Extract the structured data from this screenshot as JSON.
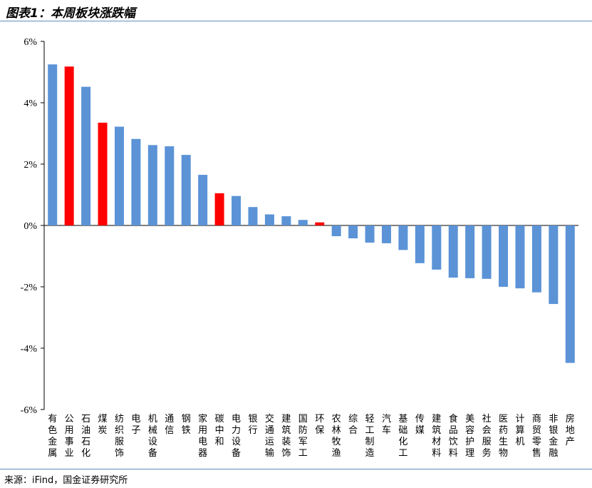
{
  "header": {
    "title": "图表1：本周板块涨跌幅"
  },
  "footer": {
    "source": "来源：iFind，国金证券研究所"
  },
  "chart_data": {
    "type": "bar",
    "title": "图表1：本周板块涨跌幅",
    "xlabel": "",
    "ylabel": "",
    "ylim": [
      -6,
      6
    ],
    "yticks": [
      6,
      4,
      2,
      0,
      -2,
      -4,
      -6
    ],
    "ytick_labels": [
      "6%",
      "4%",
      "2%",
      "0%",
      "-2%",
      "-4%",
      "-6%"
    ],
    "grid": false,
    "legend": "none",
    "colors": {
      "default": "#5b93d6",
      "highlight": "#ff0000"
    },
    "categories": [
      "有色金属",
      "公用事业",
      "石油石化",
      "煤炭",
      "纺织服饰",
      "电子",
      "机械设备",
      "通信",
      "钢铁",
      "家用电器",
      "碳中和",
      "电力设备",
      "银行",
      "交通运输",
      "建筑装饰",
      "国防军工",
      "环保",
      "农林牧渔",
      "综合",
      "轻工制造",
      "汽车",
      "基础化工",
      "传媒",
      "建筑材料",
      "食品饮料",
      "美容护理",
      "社会服务",
      "医药生物",
      "计算机",
      "商贸零售",
      "非银金融",
      "房地产"
    ],
    "values": [
      5.25,
      5.18,
      4.52,
      3.35,
      3.22,
      2.82,
      2.62,
      2.58,
      2.3,
      1.65,
      1.05,
      0.96,
      0.6,
      0.36,
      0.3,
      0.18,
      0.1,
      -0.35,
      -0.42,
      -0.56,
      -0.58,
      -0.8,
      -1.23,
      -1.44,
      -1.7,
      -1.72,
      -1.74,
      -2.0,
      -2.05,
      -2.18,
      -2.56,
      -4.48
    ],
    "highlighted": [
      false,
      true,
      false,
      true,
      false,
      false,
      false,
      false,
      false,
      false,
      true,
      false,
      false,
      false,
      false,
      false,
      true,
      false,
      false,
      false,
      false,
      false,
      false,
      false,
      false,
      false,
      false,
      false,
      false,
      false,
      false,
      false
    ]
  }
}
